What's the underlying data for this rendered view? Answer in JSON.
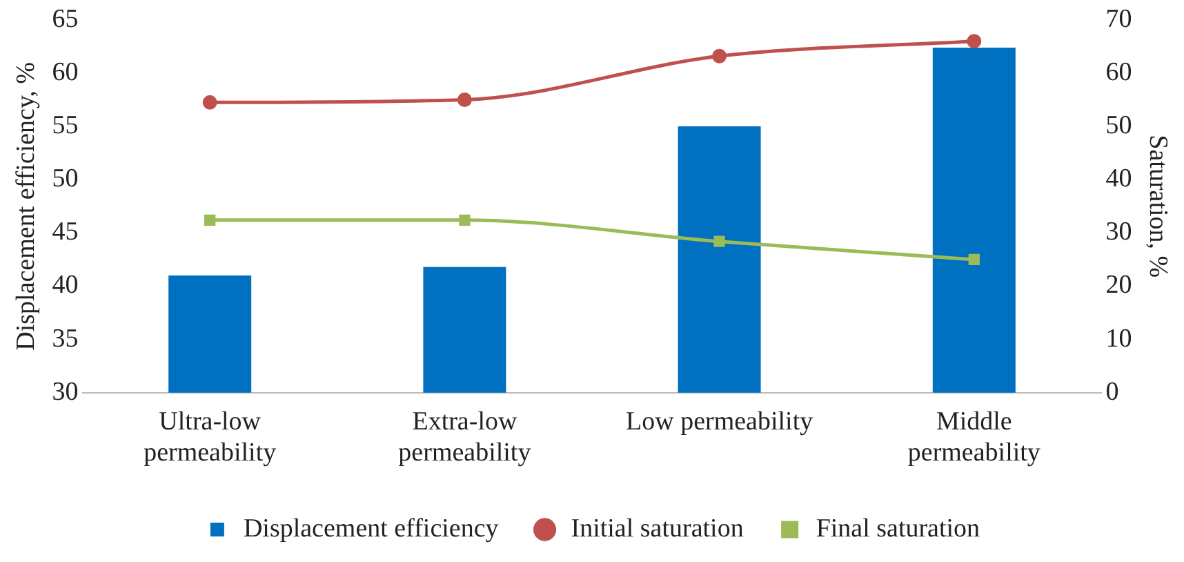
{
  "chart_data": {
    "type": "bar",
    "categories": [
      "Ultra-low\npermeability",
      "Extra-low\npermeability",
      "Low permeability",
      "Middle\npermeability"
    ],
    "ylabel": "Displacement efficiency, %",
    "y2label": "Saturation, %",
    "ylim": [
      30,
      65
    ],
    "yticks": [
      30,
      35,
      40,
      45,
      50,
      55,
      60,
      65
    ],
    "y2lim": [
      0,
      70
    ],
    "y2ticks": [
      0,
      10,
      20,
      30,
      40,
      50,
      60,
      70
    ],
    "grid": false,
    "legend": "bottom",
    "series": [
      {
        "name": "Displacement efficiency",
        "color": "#0070c0",
        "values": [
          41,
          41.8,
          55,
          62.4
        ]
      },
      {
        "name": "Initial saturation",
        "type": "line",
        "axis": "y2",
        "marker": "circle",
        "color": "#c0504d",
        "values": [
          54.5,
          55,
          63.2,
          66
        ]
      },
      {
        "name": "Final saturation",
        "type": "line",
        "axis": "y2",
        "marker": "square",
        "color": "#9bbb59",
        "values": [
          32.4,
          32.4,
          28.4,
          25
        ]
      }
    ]
  }
}
